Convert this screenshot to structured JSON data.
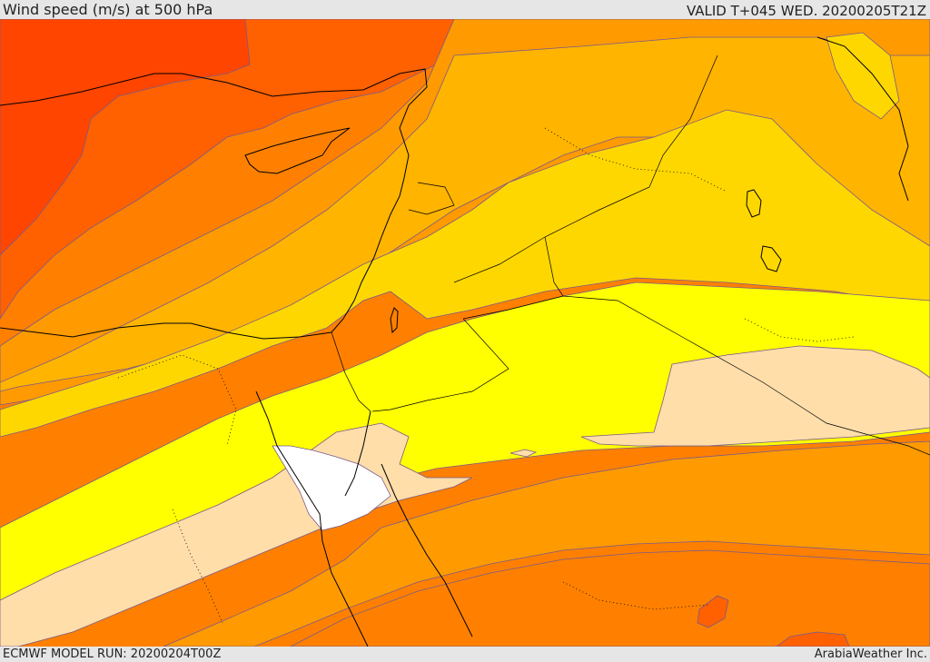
{
  "header": {
    "title": "Wind speed (m/s) at 500 hPa",
    "valid_time": "VALID T+045 WED. 20200205T21Z"
  },
  "footer": {
    "model_run": "ECMWF MODEL RUN: 20200204T00Z",
    "credit": "ArabiaWeather Inc."
  },
  "colors": {
    "band_red": "#ff4500",
    "band_red_orange": "#ff6000",
    "band_orange": "#ff8000",
    "band_orange_light": "#ff9a00",
    "band_amber": "#ffb400",
    "band_gold": "#ffd700",
    "band_yellow": "#ffff00",
    "band_peach": "#ffdeaa",
    "band_white": "#ffffff",
    "contour_line": "#7a5a8a",
    "coastline": "#000000"
  }
}
